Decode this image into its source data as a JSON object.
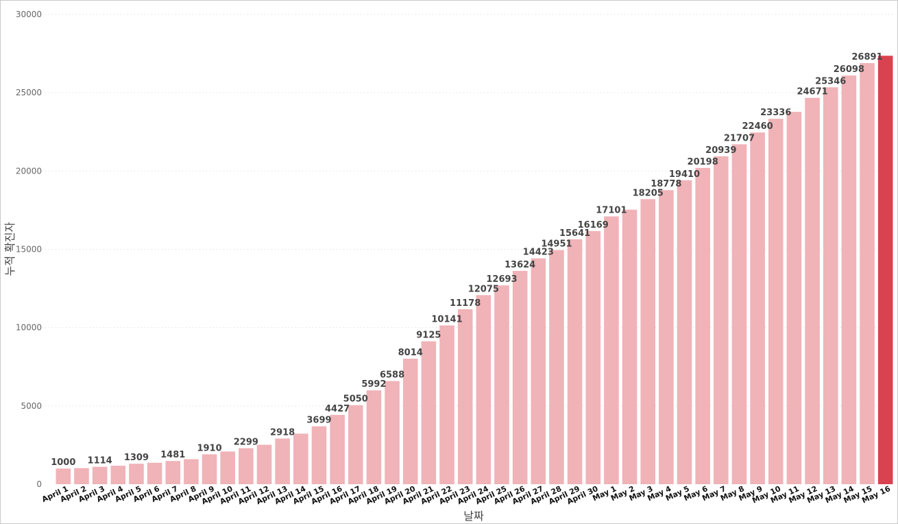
{
  "chart_data": {
    "type": "bar",
    "xlabel": "날짜",
    "ylabel": "누적 확진자",
    "ylim": [
      0,
      30000
    ],
    "yticks": [
      0,
      5000,
      10000,
      15000,
      20000,
      25000,
      30000
    ],
    "grid": true,
    "legend": "none",
    "bar_color": "#f0b3b8",
    "highlight_color": "#d9434f",
    "highlight_index": 45,
    "categories": [
      "April 1",
      "April 2",
      "April 3",
      "April 4",
      "April 5",
      "April 6",
      "April 7",
      "April 8",
      "April 9",
      "April 10",
      "April 11",
      "April 12",
      "April 13",
      "April 14",
      "April 15",
      "April 16",
      "April 17",
      "April 18",
      "April 19",
      "April 20",
      "April 21",
      "April 22",
      "April 23",
      "April 24",
      "April 25",
      "April 26",
      "April 27",
      "April 28",
      "April 29",
      "April 30",
      "May 1",
      "May 2",
      "May 3",
      "May 4",
      "May 5",
      "May 6",
      "May 7",
      "May 8",
      "May 9",
      "May 10",
      "May 11",
      "May 12",
      "May 13",
      "May 14",
      "May 15",
      "May 16"
    ],
    "values": [
      1000,
      1030,
      1114,
      1180,
      1309,
      1370,
      1481,
      1600,
      1910,
      2090,
      2299,
      2520,
      2918,
      3230,
      3699,
      4427,
      5050,
      5992,
      6588,
      8014,
      9125,
      10141,
      11178,
      12075,
      12693,
      13624,
      14423,
      14951,
      15641,
      16169,
      17101,
      17530,
      18205,
      18778,
      19410,
      20198,
      20939,
      21707,
      22460,
      23336,
      23780,
      24671,
      25346,
      26098,
      26891,
      27360
    ],
    "data_labels": [
      "1000",
      "",
      "1114",
      "",
      "1309",
      "",
      "1481",
      "",
      "1910",
      "",
      "2299",
      "",
      "2918",
      "",
      "3699",
      "4427",
      "5050",
      "5992",
      "6588",
      "8014",
      "9125",
      "10141",
      "11178",
      "12075",
      "12693",
      "13624",
      "14423",
      "14951",
      "15641",
      "16169",
      "17101",
      "",
      "18205",
      "18778",
      "19410",
      "20198",
      "20939",
      "21707",
      "22460",
      "23336",
      "",
      "24671",
      "25346",
      "26098",
      "26891",
      ""
    ]
  }
}
